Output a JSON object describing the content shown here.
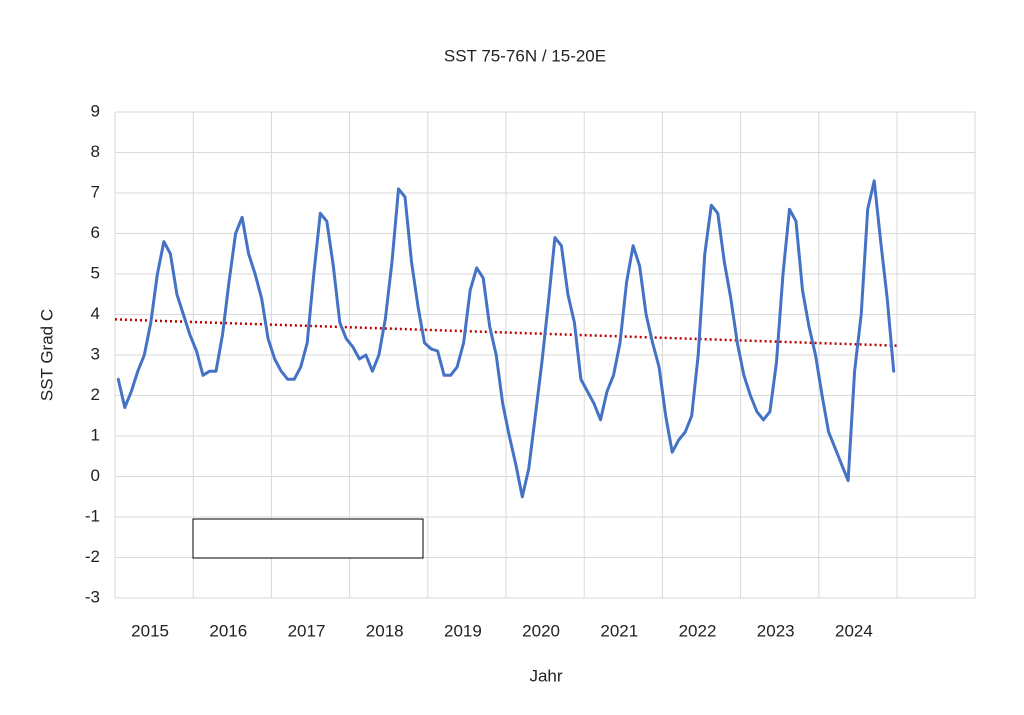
{
  "chart_data": {
    "type": "line",
    "title": "SST  75-76N / 15-20E",
    "y_label": "SST Grad C",
    "x_label": "Jahr",
    "categories": [
      null,
      null,
      null,
      null,
      null,
      "2015",
      null,
      null,
      null,
      null,
      null,
      null,
      null,
      null,
      null,
      null,
      null,
      "2016",
      null,
      null,
      null,
      null,
      null,
      null,
      null,
      null,
      null,
      null,
      null,
      "2017",
      null,
      null,
      null,
      null,
      null,
      null,
      null,
      null,
      null,
      null,
      null,
      "2018",
      null,
      null,
      null,
      null,
      null,
      null,
      null,
      null,
      null,
      null,
      null,
      "2019",
      null,
      null,
      null,
      null,
      null,
      null,
      null,
      null,
      null,
      null,
      null,
      "2020",
      null,
      null,
      null,
      null,
      null,
      null,
      null,
      null,
      null,
      null,
      null,
      "2021",
      null,
      null,
      null,
      null,
      null,
      null,
      null,
      null,
      null,
      null,
      null,
      "2022",
      null,
      null,
      null,
      null,
      null,
      null,
      null,
      null,
      null,
      null,
      null,
      "2023",
      null,
      null,
      null,
      null,
      null,
      null,
      null,
      null,
      null,
      null,
      null,
      "2024",
      null,
      null,
      null,
      null,
      null,
      null
    ],
    "series": [
      {
        "color": "#4472c4",
        "values": [
          2.4,
          1.7,
          2.1,
          2.6,
          3.0,
          3.8,
          5.0,
          5.8,
          5.5,
          4.5,
          4.0,
          3.5,
          3.1,
          2.5,
          2.6,
          2.6,
          3.5,
          4.8,
          6.0,
          6.4,
          5.5,
          5.0,
          4.4,
          3.4,
          2.9,
          2.6,
          2.4,
          2.4,
          2.7,
          3.3,
          5.0,
          6.5,
          6.3,
          5.2,
          3.8,
          3.4,
          3.2,
          2.9,
          3.0,
          2.6,
          3.0,
          3.9,
          5.3,
          7.1,
          6.9,
          5.3,
          4.2,
          3.3,
          3.15,
          3.1,
          2.5,
          2.5,
          2.7,
          3.3,
          4.6,
          5.15,
          4.9,
          3.7,
          3.0,
          1.8,
          1.0,
          0.3,
          -0.5,
          0.2,
          1.5,
          2.8,
          4.3,
          5.9,
          5.7,
          4.5,
          3.8,
          2.4,
          2.1,
          1.8,
          1.4,
          2.1,
          2.5,
          3.3,
          4.8,
          5.7,
          5.2,
          4.0,
          3.3,
          2.7,
          1.5,
          0.6,
          0.9,
          1.1,
          1.5,
          3.0,
          5.5,
          6.7,
          6.5,
          5.3,
          4.4,
          3.3,
          2.5,
          2.0,
          1.6,
          1.4,
          1.6,
          2.8,
          5.0,
          6.6,
          6.3,
          4.6,
          3.7,
          3.0,
          2.0,
          1.1,
          0.7,
          0.3,
          -0.1,
          2.6,
          4.0,
          6.6,
          7.3,
          5.8,
          4.4,
          2.6
        ]
      }
    ],
    "trendline": {
      "color": "#c00000",
      "start": 3.88,
      "end": 3.23
    },
    "ylim": [
      -3,
      9
    ],
    "yticks": [
      -3,
      -2,
      -1,
      0,
      1,
      2,
      3,
      4,
      5,
      6,
      7,
      8,
      9
    ],
    "grid": true
  }
}
